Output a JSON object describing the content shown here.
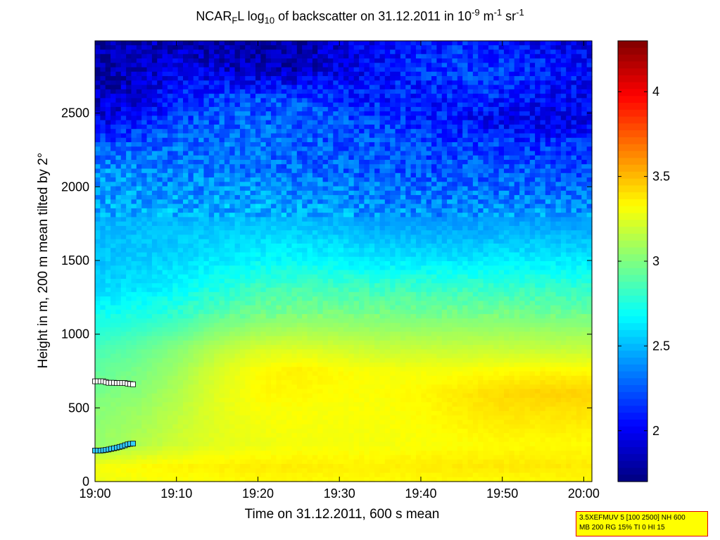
{
  "title": {
    "parts": [
      "NCAR",
      "F",
      "L log",
      "10",
      " of backscatter on 31.12.2011 in 10",
      "-9",
      " m",
      "-1",
      " sr",
      "-1"
    ]
  },
  "chart_data": {
    "type": "heatmap",
    "xlabel": "Time on 31.12.2011, 600 s mean",
    "ylabel": "Height in m, 200 m mean tilted by 2°",
    "x_ticks": [
      "19:00",
      "19:10",
      "19:20",
      "19:30",
      "19:40",
      "19:50",
      "20:00"
    ],
    "x_range_minutes": [
      0,
      61
    ],
    "y_ticks": [
      0,
      500,
      1000,
      1500,
      2000,
      2500
    ],
    "ylim": [
      0,
      2990
    ],
    "colorbar": {
      "ticks": [
        2,
        2.5,
        3,
        3.5,
        4
      ],
      "clim": [
        1.7,
        4.3
      ],
      "colormap": "jet"
    },
    "value_field": {
      "heights_m": [
        0,
        100,
        250,
        500,
        600,
        750,
        900,
        1100,
        1300,
        1500,
        1700,
        1900,
        2100,
        2300,
        2450,
        2600,
        2800,
        2990
      ],
      "times_min": [
        0,
        5,
        10,
        15,
        20,
        25,
        30,
        35,
        40,
        45,
        50,
        55,
        61
      ],
      "values": [
        [
          3.28,
          3.3,
          3.31,
          3.32,
          3.33,
          3.33,
          3.33,
          3.33,
          3.33,
          3.33,
          3.33,
          3.33,
          3.33
        ],
        [
          3.3,
          3.33,
          3.35,
          3.36,
          3.37,
          3.37,
          3.36,
          3.36,
          3.37,
          3.38,
          3.38,
          3.38,
          3.37
        ],
        [
          3.05,
          3.12,
          3.2,
          3.25,
          3.28,
          3.3,
          3.3,
          3.3,
          3.31,
          3.32,
          3.33,
          3.33,
          3.33
        ],
        [
          3.02,
          3.06,
          3.15,
          3.25,
          3.31,
          3.32,
          3.31,
          3.31,
          3.33,
          3.37,
          3.4,
          3.4,
          3.4
        ],
        [
          2.98,
          3.02,
          3.12,
          3.25,
          3.33,
          3.34,
          3.32,
          3.32,
          3.34,
          3.38,
          3.42,
          3.44,
          3.44
        ],
        [
          2.92,
          2.98,
          3.08,
          3.22,
          3.33,
          3.36,
          3.33,
          3.3,
          3.3,
          3.31,
          3.33,
          3.34,
          3.33
        ],
        [
          2.85,
          2.92,
          3.02,
          3.14,
          3.22,
          3.24,
          3.21,
          3.18,
          3.18,
          3.18,
          3.18,
          3.18,
          3.17
        ],
        [
          2.72,
          2.76,
          2.82,
          2.94,
          3.0,
          3.03,
          3.02,
          3.01,
          3.01,
          3.01,
          3.01,
          3.0,
          2.99
        ],
        [
          2.58,
          2.62,
          2.68,
          2.76,
          2.84,
          2.86,
          2.86,
          2.84,
          2.84,
          2.83,
          2.83,
          2.82,
          2.81
        ],
        [
          2.52,
          2.55,
          2.58,
          2.62,
          2.67,
          2.68,
          2.66,
          2.62,
          2.62,
          2.62,
          2.63,
          2.63,
          2.62
        ],
        [
          2.5,
          2.5,
          2.52,
          2.54,
          2.56,
          2.55,
          2.52,
          2.48,
          2.46,
          2.46,
          2.48,
          2.48,
          2.47
        ],
        [
          2.44,
          2.44,
          2.44,
          2.44,
          2.44,
          2.42,
          2.4,
          2.36,
          2.35,
          2.35,
          2.36,
          2.36,
          2.35
        ],
        [
          2.4,
          2.38,
          2.35,
          2.34,
          2.32,
          2.3,
          2.28,
          2.26,
          2.25,
          2.24,
          2.25,
          2.25,
          2.24
        ],
        [
          2.22,
          2.25,
          2.28,
          2.3,
          2.3,
          2.28,
          2.24,
          2.22,
          2.2,
          2.18,
          2.15,
          2.14,
          2.14
        ],
        [
          1.95,
          2.05,
          2.2,
          2.25,
          2.28,
          2.26,
          2.22,
          2.18,
          2.12,
          2.05,
          2.0,
          1.96,
          1.95
        ],
        [
          1.85,
          1.92,
          2.1,
          2.2,
          2.22,
          2.2,
          2.15,
          2.1,
          2.08,
          2.12,
          2.1,
          2.05,
          2.0
        ],
        [
          1.78,
          1.85,
          1.95,
          1.9,
          1.82,
          1.85,
          1.95,
          2.05,
          2.15,
          2.2,
          2.18,
          2.12,
          2.05
        ],
        [
          1.8,
          1.85,
          1.82,
          1.78,
          1.75,
          1.8,
          1.9,
          2.0,
          2.1,
          2.12,
          2.08,
          2.0,
          1.95
        ]
      ]
    },
    "series": [
      {
        "marker": "white-square",
        "x_min": [
          0,
          0.33,
          0.67,
          1,
          1.33,
          1.67,
          2,
          2.33,
          2.67,
          3,
          3.33,
          3.67,
          4,
          4.33,
          4.67
        ],
        "y_m": [
          680,
          680,
          680,
          680,
          675,
          670,
          670,
          670,
          668,
          668,
          668,
          668,
          665,
          662,
          660
        ]
      },
      {
        "marker": "cyan-square",
        "x_min": [
          0,
          0.33,
          0.67,
          1,
          1.33,
          1.67,
          2,
          2.33,
          2.67,
          3,
          3.33,
          3.67,
          4,
          4.33,
          4.67
        ],
        "y_m": [
          210,
          210,
          210,
          212,
          215,
          218,
          222,
          226,
          230,
          235,
          240,
          246,
          252,
          256,
          258
        ]
      }
    ],
    "colors": {
      "marker_white": "#ffffff",
      "marker_cyan": "#33ccff",
      "marker_edge": "#000000"
    }
  },
  "info_box": {
    "lines": [
      "3.5XEFMUV 5 [100 2500] NH 600",
      "MB 200 RG 15% TI 0 HI 15"
    ],
    "background": "#ffff00",
    "border": "#e00000"
  }
}
